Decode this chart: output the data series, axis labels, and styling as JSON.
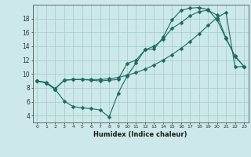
{
  "xlabel": "Humidex (Indice chaleur)",
  "ylabel": "",
  "background_color": "#cce8e8",
  "line_color": "#1a6b60",
  "grid_color": "#aacece",
  "xlim": [
    -0.5,
    23.5
  ],
  "ylim": [
    3.0,
    20.0
  ],
  "yticks": [
    4,
    6,
    8,
    10,
    12,
    14,
    16,
    18
  ],
  "xticks": [
    0,
    1,
    2,
    3,
    4,
    5,
    6,
    7,
    8,
    9,
    10,
    11,
    12,
    13,
    14,
    15,
    16,
    17,
    18,
    19,
    20,
    21,
    22,
    23
  ],
  "line1_x": [
    0,
    1,
    2,
    3,
    4,
    5,
    6,
    7,
    8,
    9,
    10,
    11,
    12,
    13,
    14,
    15,
    16,
    17,
    18,
    19,
    20,
    21,
    22,
    23
  ],
  "line1_y": [
    9.0,
    8.8,
    7.9,
    9.1,
    9.2,
    9.2,
    9.2,
    9.2,
    9.3,
    9.5,
    9.8,
    10.2,
    10.7,
    11.3,
    12.0,
    12.8,
    13.7,
    14.7,
    15.8,
    17.0,
    18.1,
    18.9,
    11.0,
    11.1
  ],
  "line2_x": [
    0,
    1,
    2,
    3,
    4,
    5,
    6,
    7,
    8,
    9,
    10,
    11,
    12,
    13,
    14,
    15,
    16,
    17,
    18,
    19,
    20,
    21,
    22,
    23
  ],
  "line2_y": [
    9.0,
    8.7,
    7.8,
    6.1,
    5.3,
    5.1,
    5.0,
    4.8,
    3.8,
    7.2,
    9.7,
    11.6,
    13.5,
    13.6,
    15.3,
    17.8,
    19.2,
    19.5,
    19.6,
    19.3,
    17.8,
    15.1,
    12.6,
    11.1
  ],
  "line3_x": [
    0,
    1,
    2,
    3,
    4,
    5,
    6,
    7,
    8,
    9,
    10,
    11,
    12,
    13,
    14,
    15,
    16,
    17,
    18,
    19,
    20,
    21,
    22,
    23
  ],
  "line3_y": [
    9.0,
    8.7,
    7.8,
    9.1,
    9.2,
    9.2,
    9.1,
    9.0,
    9.1,
    9.2,
    11.5,
    12.0,
    13.5,
    14.0,
    15.0,
    16.6,
    17.4,
    18.4,
    19.0,
    19.2,
    18.5,
    15.2,
    12.5,
    11.1
  ]
}
